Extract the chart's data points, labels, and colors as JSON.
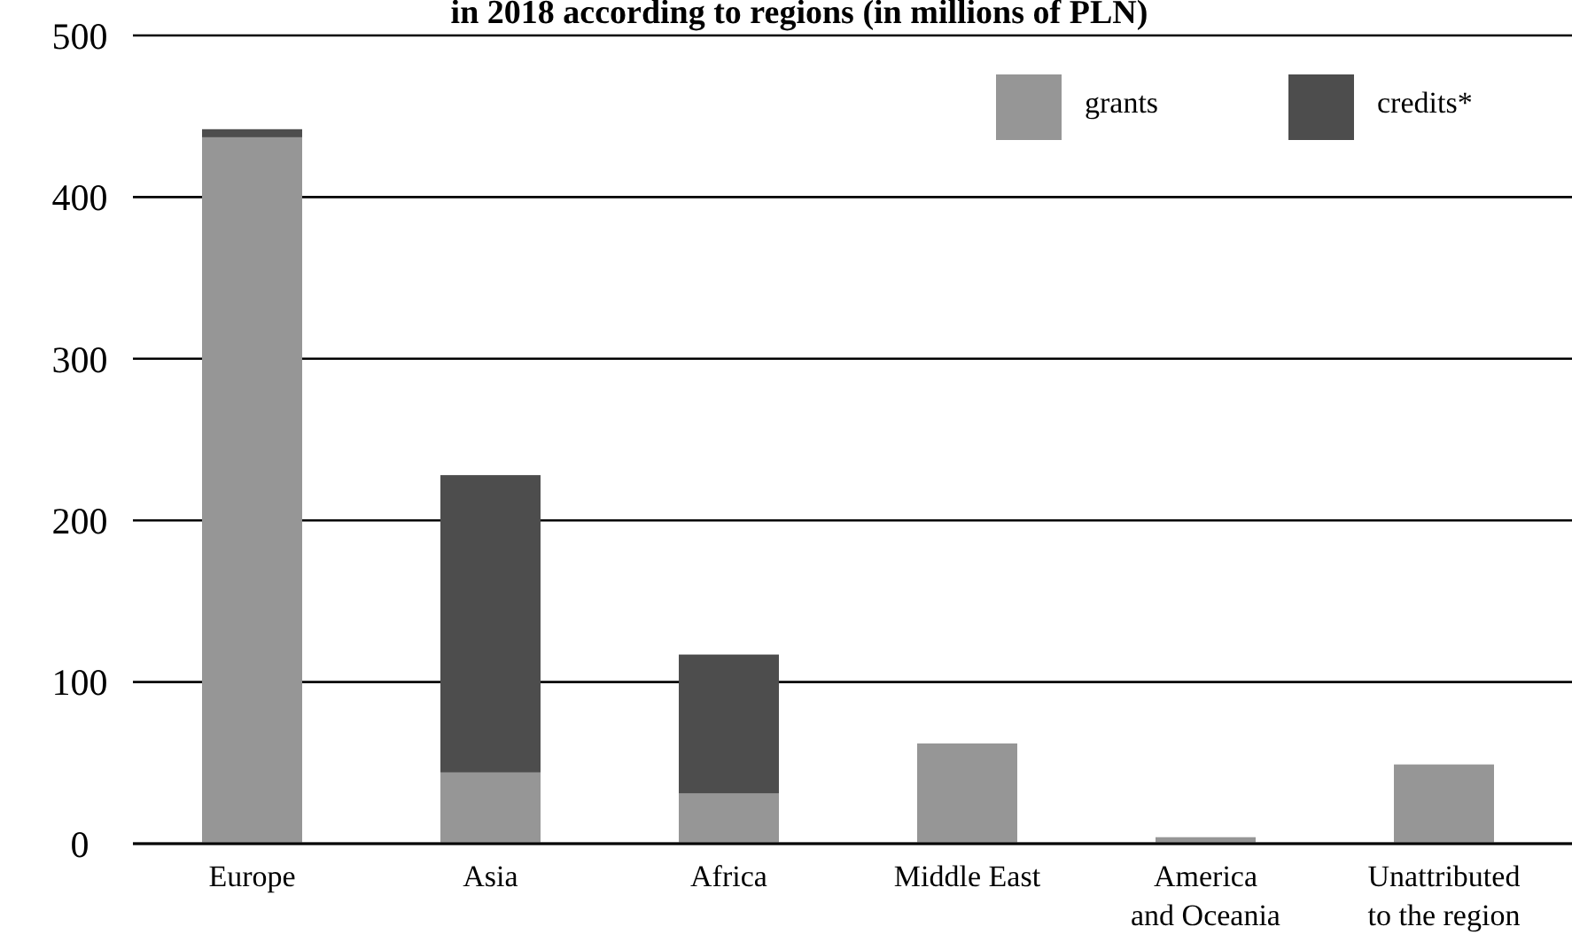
{
  "chart_data": {
    "type": "bar",
    "stacked": true,
    "title": "in 2018 according to regions (in millions of PLN)",
    "categories": [
      "Europe",
      "Asia",
      "Africa",
      "Middle East",
      "America and Oceania",
      "Unattributed to the region"
    ],
    "series": [
      {
        "name": "grants",
        "color": "#969696",
        "values": [
          437,
          44,
          31,
          62,
          4,
          49
        ]
      },
      {
        "name": "credits*",
        "color": "#4d4d4d",
        "values": [
          5,
          184,
          86,
          null,
          null,
          null
        ]
      }
    ],
    "ylim": [
      0,
      500
    ],
    "yticks": [
      0,
      100,
      200,
      300,
      400,
      500
    ],
    "grid": "y",
    "legend": "top right"
  }
}
